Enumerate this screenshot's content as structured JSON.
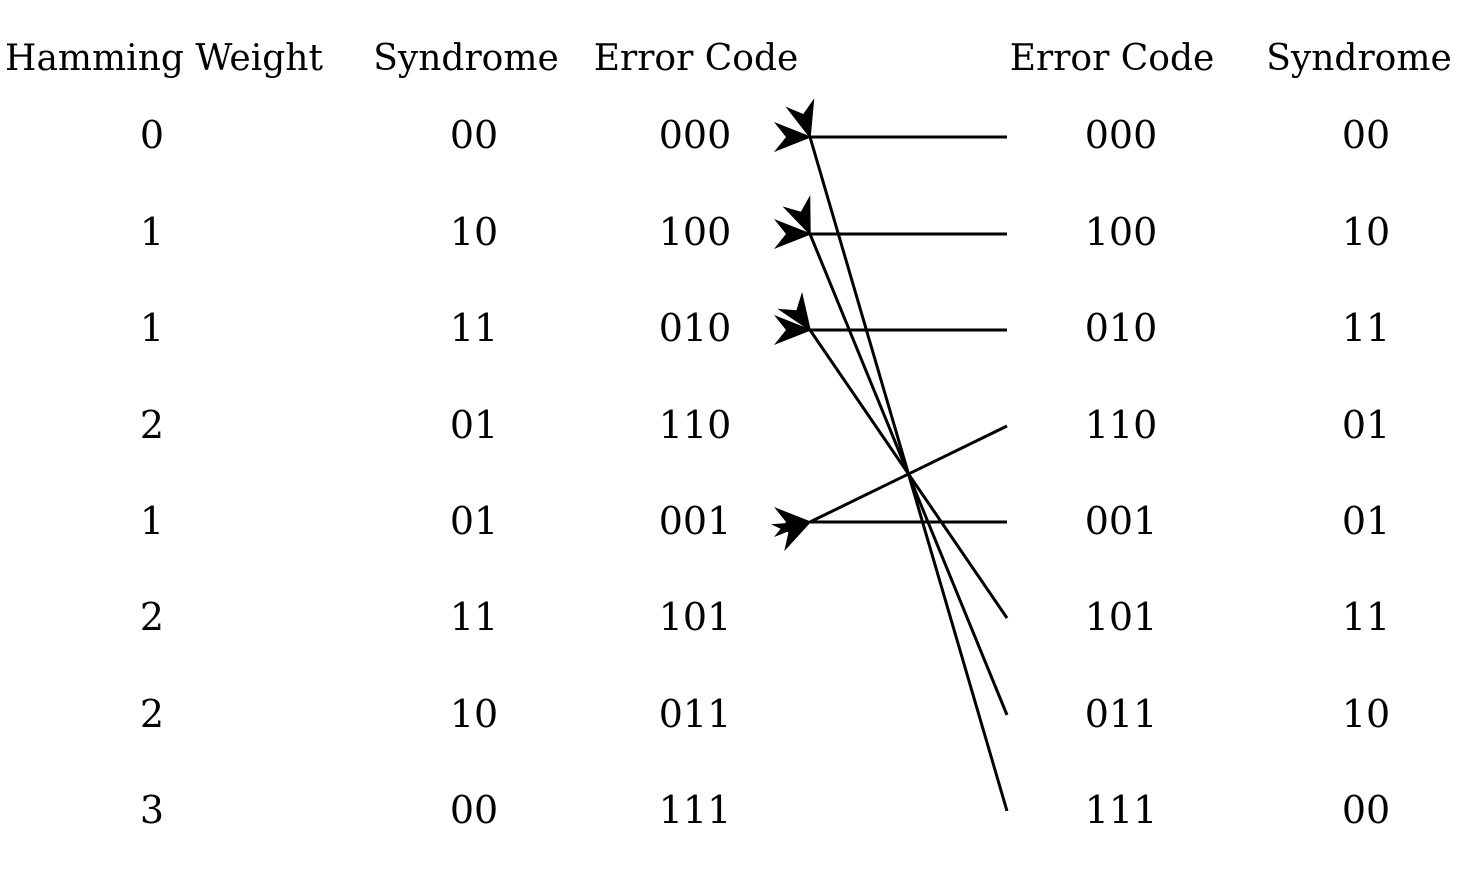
{
  "headers": {
    "left": [
      "Hamming Weight",
      "Syndrome",
      "Error Code"
    ],
    "right": [
      "Error Code",
      "Syndrome"
    ]
  },
  "left_table": [
    {
      "hamming_weight": "0",
      "syndrome": "00",
      "error_code": "000"
    },
    {
      "hamming_weight": "1",
      "syndrome": "10",
      "error_code": "100"
    },
    {
      "hamming_weight": "1",
      "syndrome": "11",
      "error_code": "010"
    },
    {
      "hamming_weight": "2",
      "syndrome": "01",
      "error_code": "110"
    },
    {
      "hamming_weight": "1",
      "syndrome": "01",
      "error_code": "001"
    },
    {
      "hamming_weight": "2",
      "syndrome": "11",
      "error_code": "101"
    },
    {
      "hamming_weight": "2",
      "syndrome": "10",
      "error_code": "011"
    },
    {
      "hamming_weight": "3",
      "syndrome": "00",
      "error_code": "111"
    }
  ],
  "right_table": [
    {
      "error_code": "000",
      "syndrome": "00"
    },
    {
      "error_code": "100",
      "syndrome": "10"
    },
    {
      "error_code": "010",
      "syndrome": "11"
    },
    {
      "error_code": "110",
      "syndrome": "01"
    },
    {
      "error_code": "001",
      "syndrome": "01"
    },
    {
      "error_code": "101",
      "syndrome": "11"
    },
    {
      "error_code": "011",
      "syndrome": "10"
    },
    {
      "error_code": "111",
      "syndrome": "00"
    }
  ],
  "mappings": [
    {
      "from_row": 0,
      "to_row": 0
    },
    {
      "from_row": 1,
      "to_row": 1
    },
    {
      "from_row": 2,
      "to_row": 2
    },
    {
      "from_row": 3,
      "to_row": 4
    },
    {
      "from_row": 4,
      "to_row": 4
    },
    {
      "from_row": 5,
      "to_row": 2
    },
    {
      "from_row": 6,
      "to_row": 1
    },
    {
      "from_row": 7,
      "to_row": 0
    }
  ],
  "colors": {
    "ink": "#000000",
    "background": "#ffffff"
  }
}
